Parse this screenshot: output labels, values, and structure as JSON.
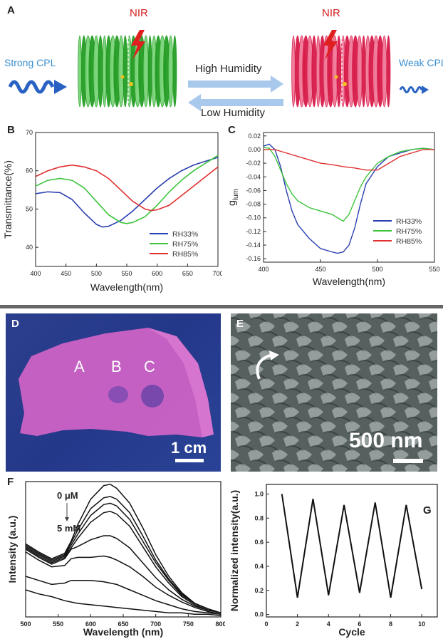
{
  "panel_a": {
    "letter": "A",
    "nir_left": "NIR",
    "nir_right": "NIR",
    "strong_cpl": "Strong CPL",
    "weak_cpl": "Weak CPL",
    "high_humidity": "High Humidity",
    "low_humidity": "Low Humidity",
    "colors": {
      "green_helix": "#2aa82a",
      "red_helix": "#e0204a",
      "arrow": "#a8c8ec",
      "cpl_text": "#3a8fd0",
      "nir_text": "#d42020"
    }
  },
  "chart_data": [
    {
      "panel": "B",
      "type": "line",
      "xlabel": "Wavelength(nm)",
      "ylabel": "Transmittance(%)",
      "xlim": [
        400,
        700
      ],
      "ylim": [
        35,
        70
      ],
      "xticks": [
        400,
        450,
        500,
        550,
        600,
        650,
        700
      ],
      "yticks": [
        40,
        50,
        60,
        70
      ],
      "legend_position": "bottom-right",
      "series": [
        {
          "name": "RH33%",
          "color": "#2a3fb0",
          "x": [
            400,
            420,
            440,
            460,
            480,
            500,
            510,
            520,
            540,
            560,
            580,
            600,
            620,
            640,
            660,
            680,
            700
          ],
          "y": [
            54,
            54.5,
            54.3,
            52.5,
            49,
            46,
            45.3,
            45.5,
            47,
            49.5,
            52.5,
            55.5,
            58,
            60,
            61.5,
            62.5,
            63.5
          ]
        },
        {
          "name": "RH75%",
          "color": "#3cc43c",
          "x": [
            400,
            420,
            440,
            460,
            480,
            500,
            520,
            540,
            550,
            560,
            580,
            600,
            620,
            640,
            660,
            680,
            700
          ],
          "y": [
            56,
            57.5,
            58,
            57.5,
            55.5,
            52,
            48.5,
            46.5,
            46.2,
            46.5,
            48,
            51,
            54.5,
            57.5,
            60,
            62,
            64
          ]
        },
        {
          "name": "RH85%",
          "color": "#e03030",
          "x": [
            400,
            420,
            440,
            460,
            480,
            500,
            520,
            540,
            560,
            580,
            590,
            600,
            620,
            640,
            660,
            680,
            700
          ],
          "y": [
            58.5,
            60,
            61,
            61.5,
            61,
            60,
            58,
            55,
            52,
            50,
            49.6,
            49.8,
            51,
            53.5,
            56,
            58.5,
            61
          ]
        }
      ]
    },
    {
      "panel": "C",
      "type": "line",
      "xlabel": "Wavelength(nm)",
      "ylabel": "g",
      "ylabel_sub": "lum",
      "xlim": [
        400,
        550
      ],
      "ylim": [
        -0.165,
        0.025
      ],
      "xticks": [
        400,
        450,
        500,
        550
      ],
      "yticks": [
        0.02,
        0.0,
        -0.02,
        -0.04,
        -0.06,
        -0.08,
        -0.1,
        -0.12,
        -0.14,
        -0.16
      ],
      "ytick_labels": [
        "0.02",
        "0.00",
        "-0.02",
        "-0.04",
        "-0.06",
        "-0.08",
        "-0.10",
        "-0.12",
        "-0.14",
        "-0.16"
      ],
      "legend_position": "bottom-right",
      "series": [
        {
          "name": "RH33%",
          "color": "#2a3fb0",
          "x": [
            400,
            405,
            410,
            415,
            420,
            425,
            430,
            440,
            450,
            460,
            465,
            470,
            475,
            480,
            485,
            490,
            500,
            510,
            520,
            530,
            540,
            550
          ],
          "y": [
            0.005,
            0.008,
            0.0,
            -0.025,
            -0.06,
            -0.09,
            -0.11,
            -0.13,
            -0.145,
            -0.15,
            -0.152,
            -0.15,
            -0.14,
            -0.115,
            -0.08,
            -0.05,
            -0.025,
            -0.01,
            -0.005,
            0.0,
            0.002,
            0.0
          ]
        },
        {
          "name": "RH75%",
          "color": "#3cc43c",
          "x": [
            400,
            405,
            410,
            415,
            420,
            425,
            430,
            440,
            450,
            460,
            465,
            470,
            475,
            480,
            485,
            490,
            500,
            510,
            520,
            530,
            540,
            550
          ],
          "y": [
            0.003,
            0.002,
            -0.01,
            -0.03,
            -0.05,
            -0.065,
            -0.075,
            -0.085,
            -0.09,
            -0.095,
            -0.1,
            -0.105,
            -0.095,
            -0.075,
            -0.055,
            -0.04,
            -0.02,
            -0.01,
            -0.003,
            0.0,
            0.002,
            0.0
          ]
        },
        {
          "name": "RH85%",
          "color": "#e03030",
          "x": [
            400,
            410,
            420,
            430,
            440,
            450,
            460,
            470,
            480,
            490,
            500,
            510,
            520,
            530,
            540,
            550
          ],
          "y": [
            0.0,
            0.0,
            -0.005,
            -0.01,
            -0.015,
            -0.02,
            -0.022,
            -0.025,
            -0.027,
            -0.03,
            -0.03,
            -0.02,
            -0.01,
            -0.005,
            0.0,
            0.0
          ]
        }
      ]
    },
    {
      "panel": "F",
      "type": "line",
      "xlabel": "Wavelength (nm)",
      "ylabel": "Intensity (a.u.)",
      "xlim": [
        500,
        800
      ],
      "ylim": [
        0,
        1
      ],
      "xticks": [
        500,
        550,
        600,
        650,
        700,
        750,
        800
      ],
      "annotation_top": "0 μM",
      "annotation_bottom": "5 mM",
      "series": [
        {
          "x": [
            500,
            520,
            540,
            560,
            570,
            580,
            600,
            620,
            630,
            640,
            660,
            680,
            700,
            720,
            740,
            760,
            780,
            800
          ],
          "y": [
            0.54,
            0.48,
            0.43,
            0.47,
            0.56,
            0.68,
            0.87,
            0.97,
            0.98,
            0.95,
            0.84,
            0.66,
            0.46,
            0.3,
            0.18,
            0.1,
            0.06,
            0.03
          ]
        },
        {
          "x": [
            500,
            520,
            540,
            560,
            570,
            580,
            600,
            620,
            630,
            640,
            660,
            680,
            700,
            720,
            740,
            760,
            780,
            800
          ],
          "y": [
            0.53,
            0.47,
            0.42,
            0.46,
            0.55,
            0.64,
            0.8,
            0.88,
            0.89,
            0.87,
            0.77,
            0.6,
            0.42,
            0.28,
            0.17,
            0.1,
            0.06,
            0.03
          ]
        },
        {
          "x": [
            500,
            520,
            540,
            560,
            570,
            580,
            600,
            620,
            630,
            640,
            660,
            680,
            700,
            720,
            740,
            760,
            780,
            800
          ],
          "y": [
            0.52,
            0.46,
            0.41,
            0.45,
            0.53,
            0.61,
            0.75,
            0.83,
            0.84,
            0.82,
            0.72,
            0.56,
            0.4,
            0.27,
            0.16,
            0.1,
            0.06,
            0.03
          ]
        },
        {
          "x": [
            500,
            520,
            540,
            560,
            570,
            580,
            600,
            620,
            630,
            640,
            660,
            680,
            700,
            720,
            740,
            760,
            780,
            800
          ],
          "y": [
            0.51,
            0.45,
            0.4,
            0.44,
            0.51,
            0.58,
            0.7,
            0.77,
            0.78,
            0.76,
            0.67,
            0.52,
            0.37,
            0.25,
            0.15,
            0.09,
            0.05,
            0.03
          ]
        },
        {
          "x": [
            500,
            520,
            540,
            560,
            570,
            580,
            600,
            620,
            630,
            640,
            660,
            680,
            700,
            720,
            740,
            760,
            780,
            800
          ],
          "y": [
            0.5,
            0.44,
            0.39,
            0.43,
            0.5,
            0.52,
            0.57,
            0.6,
            0.6,
            0.58,
            0.51,
            0.4,
            0.29,
            0.2,
            0.13,
            0.08,
            0.05,
            0.03
          ]
        },
        {
          "x": [
            500,
            520,
            540,
            560,
            570,
            580,
            600,
            620,
            630,
            640,
            660,
            680,
            700,
            720,
            740,
            760,
            780,
            800
          ],
          "y": [
            0.48,
            0.42,
            0.37,
            0.38,
            0.43,
            0.44,
            0.44,
            0.45,
            0.44,
            0.42,
            0.37,
            0.3,
            0.22,
            0.16,
            0.11,
            0.07,
            0.04,
            0.02
          ]
        },
        {
          "x": [
            500,
            520,
            540,
            560,
            570,
            580,
            600,
            620,
            640,
            660,
            680,
            700,
            720,
            740,
            760,
            780,
            800
          ],
          "y": [
            0.3,
            0.27,
            0.24,
            0.25,
            0.27,
            0.27,
            0.27,
            0.26,
            0.24,
            0.2,
            0.16,
            0.12,
            0.09,
            0.06,
            0.04,
            0.03,
            0.02
          ]
        },
        {
          "x": [
            500,
            520,
            540,
            560,
            580,
            600,
            620,
            640,
            660,
            680,
            700,
            720,
            740,
            760,
            780,
            800
          ],
          "y": [
            0.2,
            0.17,
            0.15,
            0.12,
            0.1,
            0.09,
            0.08,
            0.07,
            0.06,
            0.05,
            0.04,
            0.03,
            0.03,
            0.02,
            0.02,
            0.01
          ]
        }
      ]
    },
    {
      "panel": "G",
      "type": "line",
      "xlabel": "Cycle",
      "ylabel": "Normalized intensity(a.u.)",
      "xlim": [
        0,
        11
      ],
      "ylim": [
        -0.02,
        1.08
      ],
      "xticks": [
        0,
        2,
        4,
        6,
        8,
        10
      ],
      "yticks": [
        0.0,
        0.2,
        0.4,
        0.6,
        0.8,
        1.0
      ],
      "ytick_labels": [
        "0.0",
        "0.2",
        "0.4",
        "0.6",
        "0.8",
        "1.0"
      ],
      "series": [
        {
          "x": [
            1,
            2,
            3,
            4,
            5,
            6,
            7,
            8,
            9,
            10
          ],
          "y": [
            1.0,
            0.14,
            0.96,
            0.16,
            0.91,
            0.18,
            0.93,
            0.14,
            0.91,
            0.21
          ]
        }
      ]
    }
  ],
  "panel_d": {
    "letter": "D",
    "label_a": "A",
    "label_b": "B",
    "label_c": "C",
    "scale": "1 cm"
  },
  "panel_e": {
    "letter": "E",
    "scale": "500 nm"
  },
  "panel_f": {
    "letter": "F"
  },
  "panel_g": {
    "letter": "G"
  }
}
